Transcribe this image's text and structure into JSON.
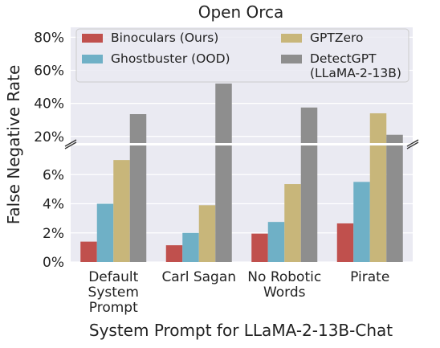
{
  "chart_data": {
    "type": "bar",
    "title": "Open Orca",
    "xlabel": "System Prompt for LLaMA-2-13B-Chat",
    "ylabel": "False Negative Rate",
    "categories": [
      [
        "Default",
        "System",
        "Prompt"
      ],
      [
        "Carl Sagan"
      ],
      [
        "No Robotic",
        "Words"
      ],
      [
        "Pirate"
      ]
    ],
    "series": [
      {
        "name": "Binoculars (Ours)",
        "color": "#c0504d",
        "values": [
          1.4,
          1.15,
          1.95,
          2.65
        ]
      },
      {
        "name": "Ghostbuster (OOD)",
        "color": "#6fb0c6",
        "values": [
          4.0,
          2.0,
          2.75,
          5.5
        ]
      },
      {
        "name": "GPTZero",
        "color": "#c8b67a",
        "values": [
          7.0,
          3.9,
          5.35,
          34.0
        ]
      },
      {
        "name": "DetectGPT\n(LLaMA-2-13B)",
        "color": "#8e8e8e",
        "values": [
          33.5,
          52.0,
          37.5,
          21.0
        ]
      }
    ],
    "broken_axis": {
      "upper": {
        "ylim": [
          16,
          86
        ],
        "ticks": [
          20,
          40,
          60,
          80
        ]
      },
      "lower": {
        "ylim": [
          0,
          8
        ],
        "ticks": [
          0,
          2,
          4,
          6
        ]
      },
      "tick_format": "{v}%"
    },
    "legend": {
      "position": "top",
      "columns": 2
    },
    "grid": true,
    "background": "#eaeaf2"
  }
}
